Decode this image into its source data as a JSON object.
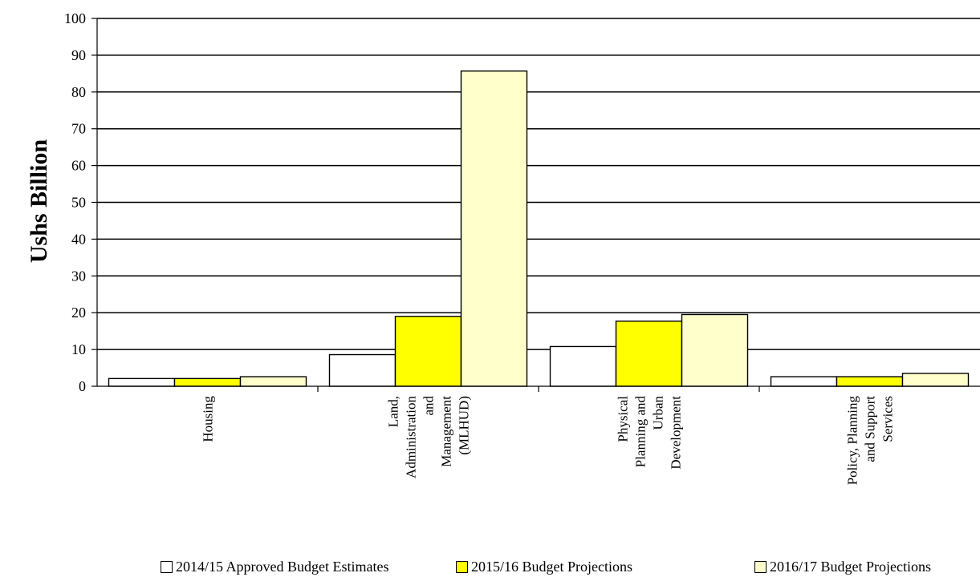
{
  "chart_data": {
    "type": "bar",
    "title": "",
    "xlabel": "",
    "ylabel": "Ushs Billion",
    "ylim": [
      0,
      100
    ],
    "yticks": [
      0,
      10,
      20,
      30,
      40,
      50,
      60,
      70,
      80,
      90,
      100
    ],
    "grid": "horizontal",
    "legend_position": "bottom",
    "categories": [
      [
        "Housing"
      ],
      [
        "Land,",
        "Administration",
        "and",
        "Management",
        "(MLHUD)"
      ],
      [
        "Physical",
        "Planning and",
        "Urban",
        "Development"
      ],
      [
        "Policy, Planning",
        "and Support",
        "Services"
      ]
    ],
    "series": [
      {
        "name": "2014/15 Approved Budget Estimates",
        "color": "#ffffff",
        "values": [
          2.1,
          8.6,
          10.8,
          2.6
        ]
      },
      {
        "name": "2015/16 Budget Projections",
        "color": "#ffff00",
        "values": [
          2.1,
          19.0,
          17.7,
          2.6
        ]
      },
      {
        "name": "2016/17 Budget Projections",
        "color": "#ffffcc",
        "values": [
          2.6,
          85.7,
          19.5,
          3.5
        ]
      }
    ]
  }
}
